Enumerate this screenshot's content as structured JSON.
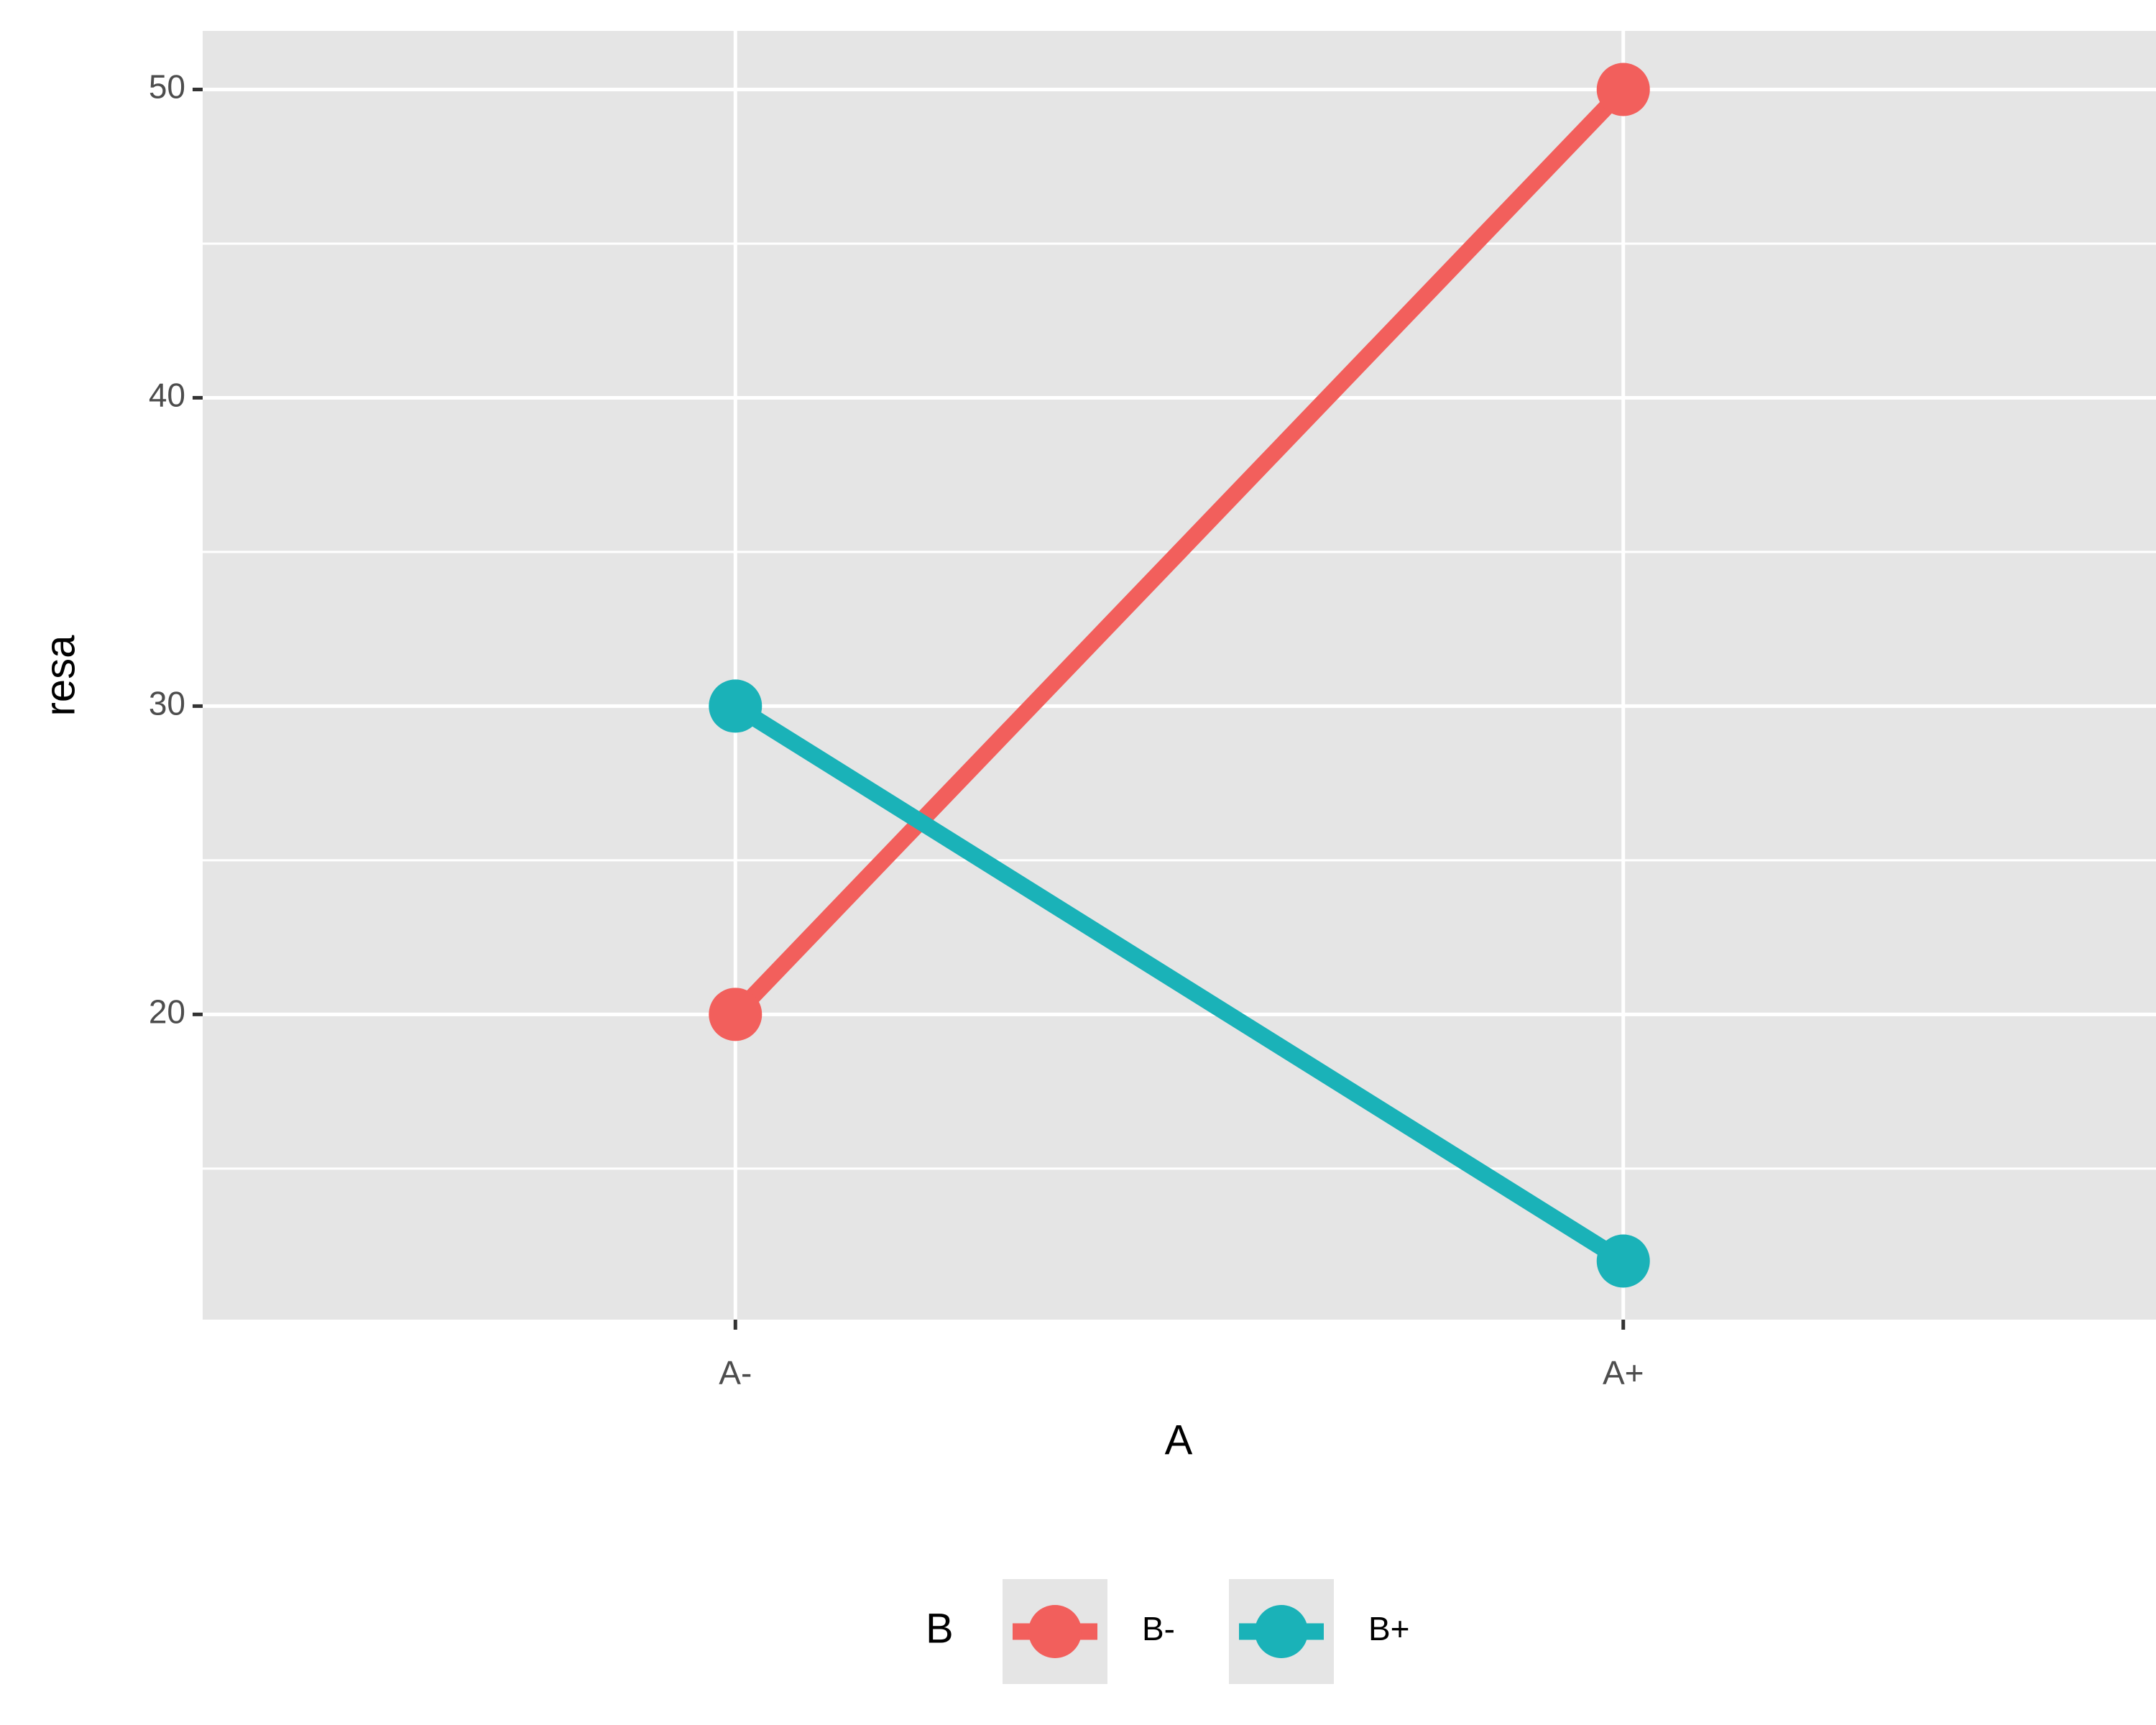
{
  "chart_data": {
    "type": "line",
    "x_label": "A",
    "y_label": "resa",
    "categories": [
      "A-",
      "A+"
    ],
    "series": [
      {
        "name": "B-",
        "color": "#F25F5C",
        "values": [
          20,
          50
        ]
      },
      {
        "name": "B+",
        "color": "#1AB2B8",
        "values": [
          30,
          12
        ]
      }
    ],
    "ylim": [
      10.1,
      51.9
    ],
    "yticks": [
      20,
      30,
      40,
      50
    ],
    "minor_yticks": [
      15,
      25,
      35,
      45
    ],
    "grid": true,
    "legend_title": "B",
    "legend_position": "bottom"
  }
}
